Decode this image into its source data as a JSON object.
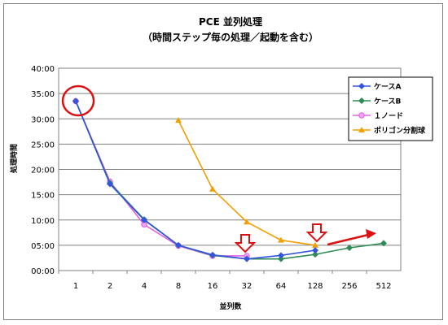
{
  "chart_data": {
    "type": "line",
    "title": "PCE 並列処理",
    "subtitle": "（時間ステップ毎の処理／起動を含む）",
    "xlabel": "並列数",
    "ylabel": "処理時間",
    "categories": [
      "1",
      "2",
      "4",
      "8",
      "16",
      "32",
      "64",
      "128",
      "256",
      "512"
    ],
    "y_ticks": [
      "00:00",
      "05:00",
      "10:00",
      "15:00",
      "20:00",
      "25:00",
      "30:00",
      "35:00",
      "40:00"
    ],
    "ylim": [
      0,
      40
    ],
    "grid": true,
    "legend_position": "top-right",
    "series": [
      {
        "name": "ケースA",
        "color": "#3355dd",
        "marker": "diamond",
        "values": [
          33.5,
          17.1,
          10.0,
          5.0,
          3.1,
          2.3,
          3.0,
          4.0,
          null,
          null
        ]
      },
      {
        "name": "ケースB",
        "color": "#2e8b57",
        "marker": "diamond",
        "values": [
          33.5,
          17.3,
          10.1,
          5.0,
          3.0,
          2.3,
          2.3,
          3.2,
          4.5,
          5.4
        ]
      },
      {
        "name": "１ノード",
        "color": "#e060e0",
        "marker": "circle",
        "values": [
          33.5,
          17.6,
          9.1,
          4.9,
          2.9,
          2.9,
          null,
          null,
          null,
          null
        ]
      },
      {
        "name": "ポリゴン分割球",
        "color": "#f0a000",
        "marker": "triangle",
        "values": [
          null,
          null,
          null,
          29.7,
          16.1,
          9.6,
          6.0,
          5.0,
          null,
          null
        ]
      }
    ]
  },
  "colors": {
    "annotation_red": "#dd1111",
    "grid": "#808080"
  }
}
